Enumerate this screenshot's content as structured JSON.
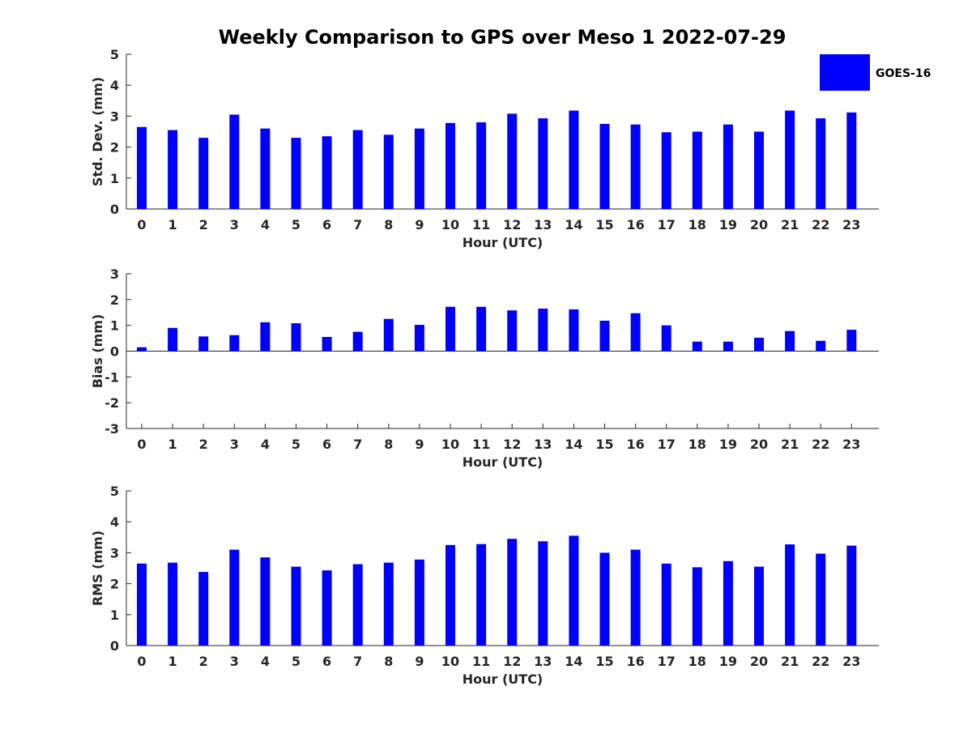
{
  "title": "Weekly Comparison to GPS over Meso 1 2022-07-29",
  "legend": {
    "label": "GOES-16",
    "placement": "top-right"
  },
  "colors": {
    "bar": "#0000ff",
    "axis": "#262626"
  },
  "chart_data": [
    {
      "type": "bar",
      "categories": [
        "0",
        "1",
        "2",
        "3",
        "4",
        "5",
        "6",
        "7",
        "8",
        "9",
        "10",
        "11",
        "12",
        "13",
        "14",
        "15",
        "16",
        "17",
        "18",
        "19",
        "20",
        "21",
        "22",
        "23"
      ],
      "series": [
        {
          "name": "GOES-16",
          "values": [
            2.65,
            2.55,
            2.3,
            3.05,
            2.6,
            2.3,
            2.35,
            2.55,
            2.4,
            2.6,
            2.78,
            2.8,
            3.08,
            2.93,
            3.18,
            2.75,
            2.73,
            2.48,
            2.5,
            2.73,
            2.5,
            3.18,
            2.93,
            3.12
          ]
        }
      ],
      "xlabel": "Hour (UTC)",
      "ylabel": "Std. Dev. (mm)",
      "ylim": [
        0,
        5
      ],
      "yticks": [
        "0",
        "1",
        "2",
        "3",
        "4",
        "5"
      ]
    },
    {
      "type": "bar",
      "categories": [
        "0",
        "1",
        "2",
        "3",
        "4",
        "5",
        "6",
        "7",
        "8",
        "9",
        "10",
        "11",
        "12",
        "13",
        "14",
        "15",
        "16",
        "17",
        "18",
        "19",
        "20",
        "21",
        "22",
        "23"
      ],
      "series": [
        {
          "name": "GOES-16",
          "values": [
            0.15,
            0.9,
            0.57,
            0.62,
            1.12,
            1.08,
            0.55,
            0.75,
            1.25,
            1.02,
            1.72,
            1.72,
            1.58,
            1.65,
            1.62,
            1.18,
            1.47,
            1.0,
            0.37,
            0.37,
            0.52,
            0.78,
            0.4,
            0.83
          ]
        }
      ],
      "xlabel": "Hour (UTC)",
      "ylabel": "Bias (mm)",
      "ylim": [
        -3,
        3
      ],
      "yticks": [
        "-3",
        "-2",
        "-1",
        "0",
        "1",
        "2",
        "3"
      ],
      "zero_line": true
    },
    {
      "type": "bar",
      "categories": [
        "0",
        "1",
        "2",
        "3",
        "4",
        "5",
        "6",
        "7",
        "8",
        "9",
        "10",
        "11",
        "12",
        "13",
        "14",
        "15",
        "16",
        "17",
        "18",
        "19",
        "20",
        "21",
        "22",
        "23"
      ],
      "series": [
        {
          "name": "GOES-16",
          "values": [
            2.65,
            2.68,
            2.38,
            3.1,
            2.85,
            2.55,
            2.43,
            2.63,
            2.68,
            2.78,
            3.25,
            3.28,
            3.45,
            3.37,
            3.55,
            3.0,
            3.1,
            2.65,
            2.53,
            2.73,
            2.55,
            3.27,
            2.97,
            3.23
          ]
        }
      ],
      "xlabel": "Hour (UTC)",
      "ylabel": "RMS (mm)",
      "ylim": [
        0,
        5
      ],
      "yticks": [
        "0",
        "1",
        "2",
        "3",
        "4",
        "5"
      ]
    }
  ]
}
